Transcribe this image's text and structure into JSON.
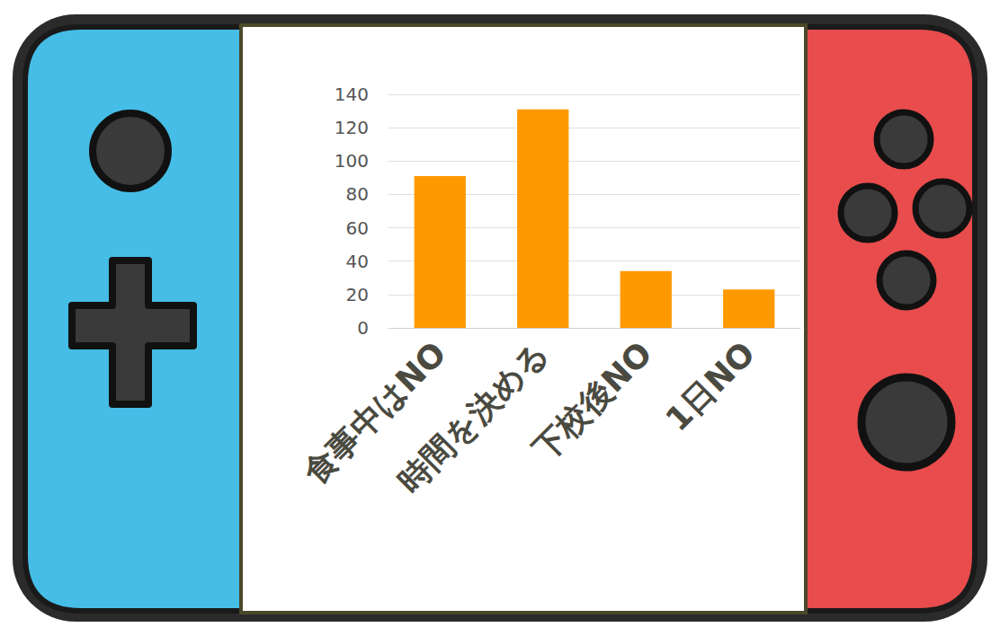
{
  "chart_data": {
    "type": "bar",
    "categories": [
      "食事中はNO",
      "時間を決める",
      "下校後NO",
      "1日NO"
    ],
    "values": [
      91,
      131,
      34,
      23
    ],
    "color": "#ff9900",
    "ylim": [
      0,
      140
    ],
    "yticks": [
      0,
      20,
      40,
      60,
      80,
      100,
      120,
      140
    ],
    "grid": true
  }
}
